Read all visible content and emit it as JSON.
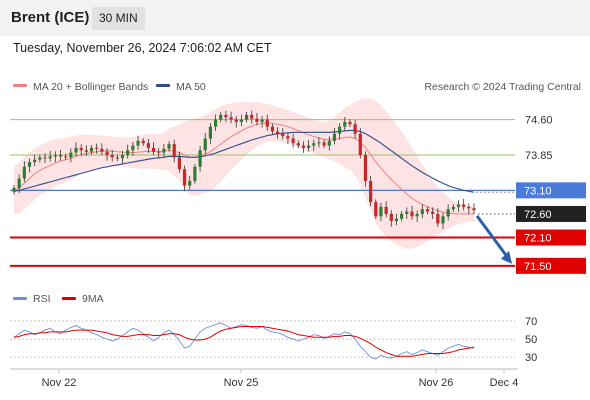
{
  "header": {
    "symbol": "Brent (ICE)",
    "interval": "30 MIN",
    "datetime": "Tuesday, November 26, 2024 7:06:02 AM CET"
  },
  "legend": {
    "ma20_label": "MA 20 + Bollinger Bands",
    "ma50_label": "MA 50",
    "credit": "Research © 2024 Trading Central"
  },
  "rsi_legend": {
    "rsi_label": "RSI",
    "ma_label": "9MA"
  },
  "colors": {
    "ma20": "#f08080",
    "bollinger_fill": "#fde0e0",
    "ma50": "#2f4d8a",
    "resistance_green": "#9bc26a",
    "pivot_blue": "#4a7bd8",
    "support_red": "#e00000",
    "current_dark": "#222222",
    "candle_up": "#2f7d32",
    "candle_down": "#c62828",
    "rsi": "#6f8fd8",
    "rsi_ma": "#e00000",
    "arrow": "#2f5fa8"
  },
  "chart_data": [
    {
      "type": "candlestick",
      "x_labels": [
        "Nov 22",
        "Nov 25",
        "Nov 26",
        "Dec 4"
      ],
      "ylim": [
        71.2,
        75.1
      ],
      "levels": [
        {
          "value": 74.6,
          "label": "74.60",
          "kind": "resistance"
        },
        {
          "value": 73.85,
          "label": "73.85",
          "kind": "resistance"
        },
        {
          "value": 73.1,
          "label": "73.10",
          "kind": "pivot"
        },
        {
          "value": 72.6,
          "label": "72.60",
          "kind": "current"
        },
        {
          "value": 72.1,
          "label": "72.10",
          "kind": "support"
        },
        {
          "value": 71.5,
          "label": "71.50",
          "kind": "support"
        }
      ],
      "forecast": {
        "from": 72.6,
        "to": 71.5,
        "direction": "down"
      },
      "close": [
        73.15,
        73.35,
        73.6,
        73.7,
        73.75,
        73.8,
        73.78,
        73.82,
        73.85,
        73.82,
        73.8,
        73.9,
        74.0,
        73.95,
        73.92,
        74.0,
        73.98,
        73.92,
        73.85,
        73.8,
        73.78,
        73.85,
        73.95,
        74.05,
        74.15,
        74.1,
        74.0,
        73.92,
        73.9,
        73.98,
        74.08,
        73.8,
        73.55,
        73.2,
        73.3,
        73.6,
        73.95,
        74.2,
        74.45,
        74.6,
        74.7,
        74.65,
        74.6,
        74.55,
        74.6,
        74.7,
        74.62,
        74.55,
        74.6,
        74.45,
        74.35,
        74.3,
        74.25,
        74.2,
        74.1,
        74.05,
        74.0,
        74.05,
        74.1,
        74.12,
        74.05,
        74.15,
        74.3,
        74.45,
        74.55,
        74.5,
        74.3,
        73.85,
        73.3,
        72.85,
        72.55,
        72.75,
        72.6,
        72.45,
        72.5,
        72.6,
        72.65,
        72.55,
        72.6,
        72.7,
        72.65,
        72.6,
        72.4,
        72.55,
        72.7,
        72.75,
        72.8,
        72.75,
        72.72,
        72.68
      ],
      "ma20": [
        73.1,
        73.15,
        73.25,
        73.35,
        73.45,
        73.52,
        73.58,
        73.63,
        73.68,
        73.72,
        73.75,
        73.78,
        73.82,
        73.86,
        73.88,
        73.9,
        73.92,
        73.93,
        73.94,
        73.93,
        73.92,
        73.91,
        73.9,
        73.9,
        73.91,
        73.92,
        73.93,
        73.93,
        73.92,
        73.93,
        73.95,
        73.93,
        73.9,
        73.85,
        73.8,
        73.8,
        73.83,
        73.87,
        73.92,
        74.0,
        74.08,
        74.16,
        74.24,
        74.3,
        74.36,
        74.42,
        74.46,
        74.5,
        74.52,
        74.53,
        74.52,
        74.5,
        74.48,
        74.45,
        74.41,
        74.37,
        74.32,
        74.28,
        74.24,
        74.21,
        74.18,
        74.17,
        74.18,
        74.2,
        74.22,
        74.23,
        74.2,
        74.12,
        74.0,
        73.86,
        73.7,
        73.57,
        73.45,
        73.33,
        73.22,
        73.12,
        73.02,
        72.93,
        72.86,
        72.8,
        72.75,
        72.71,
        72.67,
        72.64,
        72.62,
        72.61,
        72.6,
        72.6,
        72.6,
        72.6
      ],
      "ma50": [
        73.08,
        73.1,
        73.13,
        73.16,
        73.19,
        73.22,
        73.25,
        73.28,
        73.31,
        73.34,
        73.37,
        73.4,
        73.43,
        73.46,
        73.49,
        73.52,
        73.55,
        73.58,
        73.6,
        73.62,
        73.64,
        73.66,
        73.68,
        73.7,
        73.72,
        73.74,
        73.76,
        73.78,
        73.79,
        73.8,
        73.82,
        73.82,
        73.82,
        73.81,
        73.8,
        73.8,
        73.81,
        73.83,
        73.86,
        73.89,
        73.93,
        73.97,
        74.01,
        74.05,
        74.09,
        74.13,
        74.17,
        74.2,
        74.23,
        74.26,
        74.28,
        74.3,
        74.31,
        74.32,
        74.33,
        74.33,
        74.33,
        74.33,
        74.33,
        74.33,
        74.33,
        74.33,
        74.34,
        74.35,
        74.36,
        74.37,
        74.37,
        74.35,
        74.3,
        74.24,
        74.17,
        74.1,
        74.02,
        73.94,
        73.86,
        73.78,
        73.7,
        73.62,
        73.55,
        73.48,
        73.42,
        73.36,
        73.3,
        73.25,
        73.2,
        73.16,
        73.13,
        73.1,
        73.08,
        73.06
      ],
      "bb_upper": [
        73.6,
        73.7,
        73.8,
        73.9,
        74.0,
        74.05,
        74.1,
        74.15,
        74.18,
        74.2,
        74.22,
        74.24,
        74.26,
        74.28,
        74.28,
        74.28,
        74.27,
        74.26,
        74.25,
        74.24,
        74.23,
        74.22,
        74.22,
        74.23,
        74.25,
        74.28,
        74.3,
        74.3,
        74.3,
        74.32,
        74.4,
        74.45,
        74.5,
        74.55,
        74.6,
        74.62,
        74.65,
        74.7,
        74.76,
        74.82,
        74.88,
        74.92,
        74.95,
        74.96,
        74.97,
        74.98,
        74.98,
        74.97,
        74.95,
        74.93,
        74.9,
        74.87,
        74.84,
        74.8,
        74.76,
        74.72,
        74.68,
        74.64,
        74.6,
        74.57,
        74.55,
        74.58,
        74.65,
        74.75,
        74.85,
        74.92,
        74.98,
        75.02,
        75.05,
        75.05,
        75.0,
        74.9,
        74.78,
        74.64,
        74.5,
        74.34,
        74.18,
        74.0,
        73.82,
        73.65,
        73.48,
        73.32,
        73.18,
        73.06,
        72.96,
        72.88,
        72.82,
        72.78,
        72.76,
        72.75
      ],
      "bb_lower": [
        72.6,
        72.6,
        72.7,
        72.8,
        72.9,
        73.0,
        73.06,
        73.1,
        73.18,
        73.24,
        73.28,
        73.32,
        73.38,
        73.44,
        73.48,
        73.52,
        73.57,
        73.6,
        73.63,
        73.62,
        73.61,
        73.6,
        73.58,
        73.57,
        73.57,
        73.56,
        73.56,
        73.56,
        73.54,
        73.54,
        73.5,
        73.41,
        73.3,
        73.15,
        73.0,
        72.98,
        73.01,
        73.04,
        73.08,
        73.18,
        73.28,
        73.4,
        73.53,
        73.64,
        73.75,
        73.86,
        73.94,
        74.03,
        74.09,
        74.13,
        74.14,
        74.13,
        74.12,
        74.1,
        74.06,
        74.02,
        73.96,
        73.92,
        73.88,
        73.85,
        73.81,
        73.76,
        73.71,
        73.65,
        73.59,
        73.54,
        73.42,
        73.22,
        72.95,
        72.67,
        72.4,
        72.24,
        72.12,
        72.02,
        71.94,
        71.9,
        71.86,
        71.86,
        71.9,
        71.95,
        72.02,
        72.1,
        72.16,
        72.22,
        72.28,
        72.34,
        72.38,
        72.42,
        72.44,
        72.45
      ]
    },
    {
      "type": "line",
      "name_rsi": "RSI",
      "name_ma": "9MA",
      "y_ticks": [
        70,
        50,
        30
      ],
      "ylim": [
        18,
        80
      ],
      "rsi": [
        52,
        56,
        60,
        58,
        55,
        57,
        60,
        62,
        58,
        56,
        60,
        63,
        65,
        62,
        60,
        57,
        55,
        52,
        50,
        48,
        50,
        54,
        58,
        62,
        60,
        56,
        52,
        48,
        52,
        57,
        60,
        55,
        48,
        40,
        42,
        50,
        58,
        62,
        64,
        66,
        68,
        65,
        62,
        64,
        66,
        65,
        63,
        62,
        64,
        60,
        58,
        57,
        55,
        52,
        50,
        48,
        50,
        52,
        55,
        54,
        51,
        53,
        56,
        55,
        58,
        56,
        50,
        42,
        36,
        30,
        28,
        32,
        30,
        29,
        31,
        34,
        36,
        33,
        35,
        38,
        36,
        34,
        32,
        36,
        40,
        42,
        44,
        42,
        41,
        40
      ],
      "rsi_ma": [
        52,
        53,
        55,
        56,
        56,
        57,
        57,
        58,
        58,
        58,
        58,
        59,
        60,
        60,
        60,
        60,
        59,
        58,
        57,
        55,
        54,
        53,
        53,
        54,
        55,
        55,
        55,
        54,
        54,
        55,
        56,
        56,
        55,
        52,
        50,
        49,
        49,
        50,
        52,
        56,
        59,
        61,
        62,
        63,
        64,
        64,
        64,
        64,
        64,
        63,
        62,
        61,
        60,
        59,
        57,
        55,
        54,
        53,
        52,
        52,
        52,
        52,
        53,
        53,
        54,
        54,
        53,
        51,
        48,
        45,
        41,
        38,
        35,
        33,
        31,
        31,
        31,
        31,
        32,
        33,
        34,
        34,
        34,
        34,
        35,
        36,
        38,
        39,
        40,
        41
      ]
    }
  ]
}
